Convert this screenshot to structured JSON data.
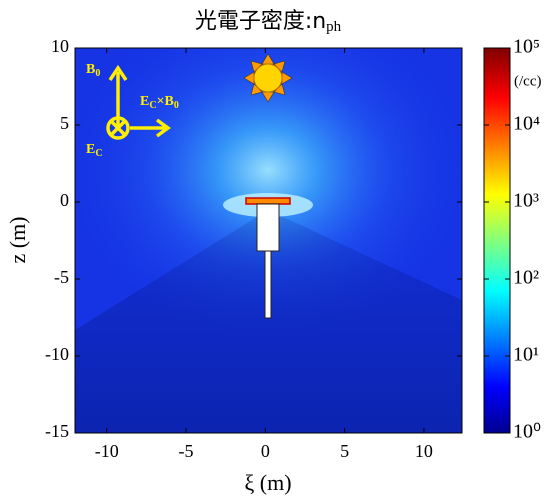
{
  "chart_data": {
    "type": "heatmap",
    "title": "光電子密度:n",
    "title_subscript": "ph",
    "xlabel": "ξ (m)",
    "ylabel": "z (m)",
    "xlim": [
      -12,
      12.4
    ],
    "ylim": [
      -15,
      10
    ],
    "xticks": [
      -10,
      -5,
      0,
      5,
      10
    ],
    "yticks": [
      -15,
      -10,
      -5,
      0,
      5,
      10
    ],
    "colorbar": {
      "scale": "log",
      "lim": [
        1,
        100000
      ],
      "ticks": [
        {
          "value": 1,
          "label": "10⁰"
        },
        {
          "value": 10,
          "label": "10¹"
        },
        {
          "value": 100,
          "label": "10²"
        },
        {
          "value": 1000,
          "label": "10³"
        },
        {
          "value": 10000,
          "label": "10⁴"
        },
        {
          "value": 100000,
          "label": "10⁵"
        }
      ],
      "unit": "(/cc)"
    },
    "annotations": {
      "b0": [
        "B",
        "0"
      ],
      "ec_x_b0": [
        "E",
        "C",
        "×B",
        "0"
      ],
      "ec": [
        "E",
        "C"
      ]
    }
  }
}
